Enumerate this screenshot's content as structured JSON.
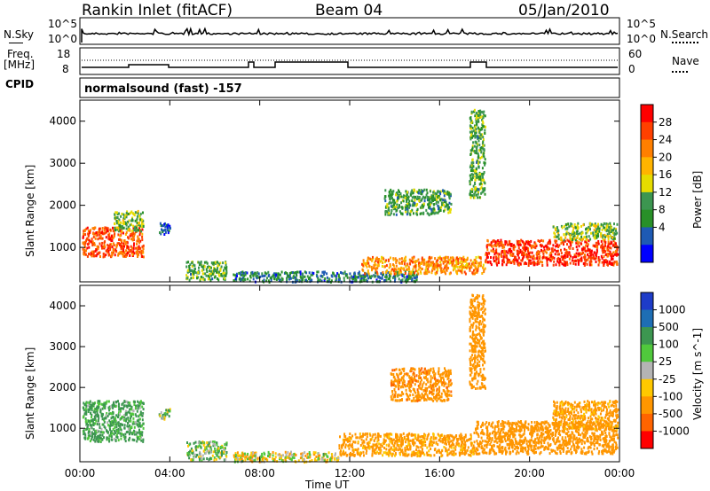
{
  "header": {
    "station": "Rankin Inlet (fitACF)",
    "beam": "Beam 04",
    "date": "05/Jan/2010"
  },
  "top_panels": {
    "nsky_label": "N.Sky",
    "nsky_ticks": [
      "10^5",
      "10^0"
    ],
    "nsearch_label": "N.Search",
    "nsearch_ticks": [
      "10^5",
      "10^0"
    ],
    "freq_label_line1": "Freq.",
    "freq_label_line2": "[MHz]",
    "freq_ticks": [
      "18",
      "8"
    ],
    "nave_label": "Nave",
    "nave_ticks": [
      "60",
      "0"
    ],
    "cpid_label": "CPID",
    "cpid_text": "normalsound (fast) -157"
  },
  "axes": {
    "ylabel": "Slant Range [km]",
    "yticks": [
      "4000",
      "3000",
      "2000",
      "1000"
    ],
    "xticks": [
      "00:00",
      "04:00",
      "08:00",
      "12:00",
      "16:00",
      "20:00",
      "00:00"
    ],
    "xlabel": "Time UT"
  },
  "colorbars": {
    "power": {
      "label": "Power [dB]",
      "ticks": [
        "28",
        "24",
        "20",
        "16",
        "12",
        "8",
        "4"
      ],
      "colors": [
        "#ff0000",
        "#ff4000",
        "#ff7f00",
        "#ffb400",
        "#e6dc00",
        "#3c9650",
        "#289028",
        "#1e5ab4",
        "#0000ff"
      ]
    },
    "velocity": {
      "label": "Velocity [m s^-1]",
      "ticks": [
        "1000",
        "500",
        "100",
        "25",
        "-25",
        "-100",
        "-500",
        "-1000"
      ],
      "colors": [
        "#1e3cc8",
        "#1e6eb4",
        "#3c9650",
        "#50c83c",
        "#b4b4b4",
        "#ffc800",
        "#ff9600",
        "#ff6400",
        "#ff0000"
      ]
    }
  },
  "chart_data": [
    {
      "type": "heatmap",
      "title": "Power",
      "xlabel": "Time UT",
      "ylabel": "Slant Range [km]",
      "xlim": [
        0,
        24
      ],
      "ylim": [
        180,
        4500
      ],
      "zlabel": "Power [dB]",
      "zlim": [
        0,
        30
      ],
      "blobs": [
        {
          "t": [
            0.1,
            2.8
          ],
          "r": [
            800,
            1500
          ],
          "z": 26
        },
        {
          "t": [
            1.5,
            2.8
          ],
          "r": [
            1400,
            1900
          ],
          "z": 14
        },
        {
          "t": [
            3.5,
            4.0
          ],
          "r": [
            1300,
            1600
          ],
          "z": 6
        },
        {
          "t": [
            4.7,
            6.5
          ],
          "r": [
            250,
            700
          ],
          "z": 12
        },
        {
          "t": [
            6.8,
            15.0
          ],
          "r": [
            200,
            450
          ],
          "z": 8
        },
        {
          "t": [
            12.5,
            18.0
          ],
          "r": [
            400,
            800
          ],
          "z": 22
        },
        {
          "t": [
            13.5,
            16.5
          ],
          "r": [
            1800,
            2400
          ],
          "z": 11
        },
        {
          "t": [
            17.3,
            18.0
          ],
          "r": [
            2200,
            4300
          ],
          "z": 12
        },
        {
          "t": [
            18.0,
            23.9
          ],
          "r": [
            600,
            1200
          ],
          "z": 28
        },
        {
          "t": [
            21.0,
            23.9
          ],
          "r": [
            1200,
            1600
          ],
          "z": 14
        }
      ]
    },
    {
      "type": "heatmap",
      "title": "Velocity",
      "xlabel": "Time UT",
      "ylabel": "Slant Range [km]",
      "xlim": [
        0,
        24
      ],
      "ylim": [
        180,
        4500
      ],
      "zlabel": "Velocity [m s^-1]",
      "zlim": [
        -1000,
        1000
      ],
      "blobs": [
        {
          "t": [
            0.1,
            2.8
          ],
          "r": [
            700,
            1700
          ],
          "z": 150
        },
        {
          "t": [
            3.5,
            4.0
          ],
          "r": [
            1250,
            1500
          ],
          "z": 50
        },
        {
          "t": [
            4.7,
            6.5
          ],
          "r": [
            250,
            700
          ],
          "z": 60
        },
        {
          "t": [
            6.8,
            11.5
          ],
          "r": [
            200,
            450
          ],
          "z": -40
        },
        {
          "t": [
            11.5,
            17.5
          ],
          "r": [
            350,
            900
          ],
          "z": -200
        },
        {
          "t": [
            13.8,
            16.5
          ],
          "r": [
            1700,
            2500
          ],
          "z": -400
        },
        {
          "t": [
            17.3,
            18.0
          ],
          "r": [
            2000,
            4300
          ],
          "z": -300
        },
        {
          "t": [
            17.5,
            23.9
          ],
          "r": [
            400,
            1200
          ],
          "z": -250
        },
        {
          "t": [
            21.0,
            23.9
          ],
          "r": [
            1000,
            1700
          ],
          "z": -200
        }
      ]
    }
  ]
}
